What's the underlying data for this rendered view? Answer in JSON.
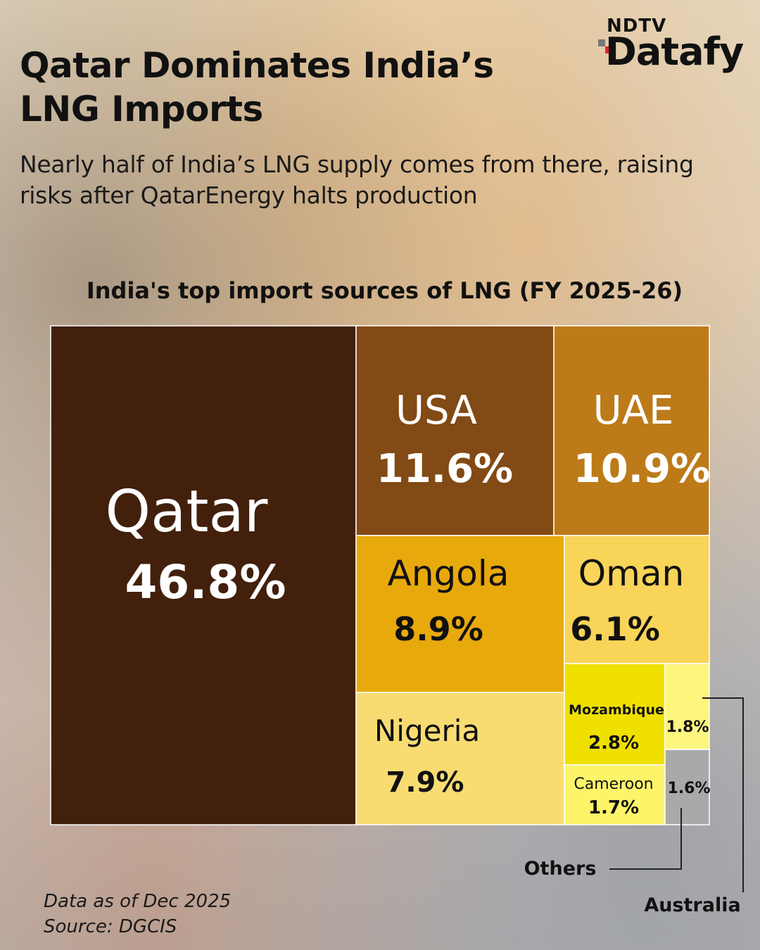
{
  "header": {
    "title": "Qatar Dominates India’s LNG Imports",
    "subtitle": "Nearly half of India’s LNG supply comes from there, raising risks after QatarEnergy halts production"
  },
  "logo": {
    "brand": "NDTV",
    "product": "Datafy"
  },
  "chart_data": {
    "type": "treemap",
    "title": "India's top import sources of LNG (FY 2025-26)",
    "unit": "%",
    "items": [
      {
        "name": "Qatar",
        "label": "Qatar",
        "value": 46.8,
        "value_label": "46.8%",
        "color": "#42200b"
      },
      {
        "name": "USA",
        "label": "USA",
        "value": 11.6,
        "value_label": "11.6%",
        "color": "#824a14"
      },
      {
        "name": "UAE",
        "label": "UAE",
        "value": 10.9,
        "value_label": "10.9%",
        "color": "#bd7a18"
      },
      {
        "name": "Angola",
        "label": "Angola",
        "value": 8.9,
        "value_label": "8.9%",
        "color": "#e8a90c"
      },
      {
        "name": "Oman",
        "label": "Oman",
        "value": 6.1,
        "value_label": "6.1%",
        "color": "#f8d458"
      },
      {
        "name": "Nigeria",
        "label": "Nigeria",
        "value": 7.9,
        "value_label": "7.9%",
        "color": "#f8dc72"
      },
      {
        "name": "Mozambique",
        "label": "Mozambique",
        "value": 2.8,
        "value_label": "2.8%",
        "color": "#f0e000"
      },
      {
        "name": "Cameroon",
        "label": "Cameroon",
        "value": 1.7,
        "value_label": "1.7%",
        "color": "#fdf46a"
      },
      {
        "name": "Australia",
        "label": "Australia",
        "value": 1.8,
        "value_label": "1.8%",
        "color": "#fcf57e"
      },
      {
        "name": "Others",
        "label": "Others",
        "value": 1.6,
        "value_label": "1.6%",
        "color": "#a9a9a9"
      }
    ],
    "callouts": [
      "Others",
      "Australia"
    ]
  },
  "footer": {
    "data_note": "Data as of Dec 2025",
    "source": "Source: DGCIS"
  }
}
